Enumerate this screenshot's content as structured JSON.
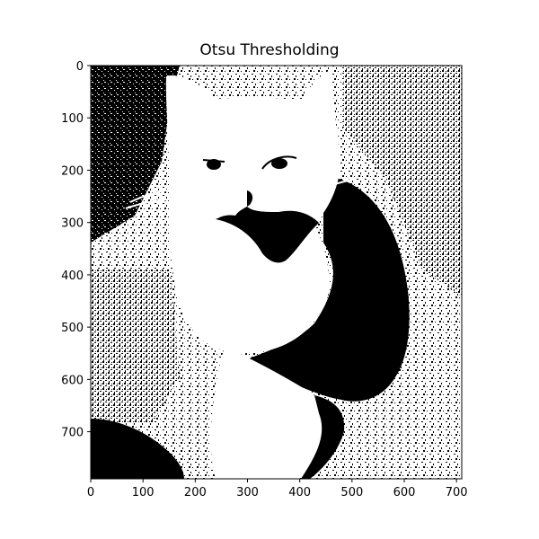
{
  "figure": {
    "title": "Otsu Thresholding",
    "image_description_colors": {
      "foreground": "#ffffff",
      "background": "#000000"
    }
  },
  "axes": {
    "x_ticks": [
      "0",
      "100",
      "200",
      "300",
      "400",
      "500",
      "600",
      "700"
    ],
    "y_ticks": [
      "0",
      "100",
      "200",
      "300",
      "400",
      "500",
      "600",
      "700"
    ],
    "x_range": [
      0,
      710
    ],
    "y_range": [
      0,
      790
    ]
  }
}
